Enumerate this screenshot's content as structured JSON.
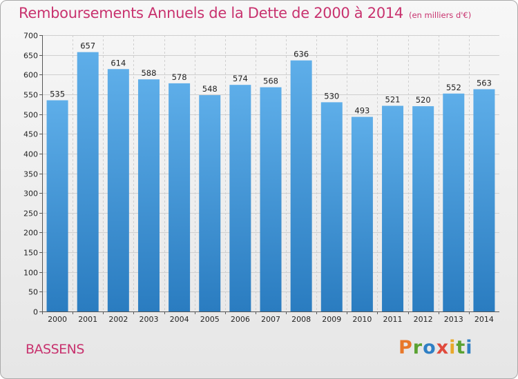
{
  "page": {
    "title": "Remboursements Annuels de la Dette de 2000 à 2014",
    "subtitle": "(en milliers d'€)",
    "city": "BASSENS",
    "logo_text": "Proxiti",
    "colors": {
      "title": "#c8326e",
      "bar_top": "#5eaee9",
      "bar_bottom": "#2a7cc0",
      "grid": "#cfcfcf",
      "logo_letters": [
        "#e8782a",
        "#5aa232",
        "#2f7fc4",
        "#e04a3c",
        "#e8a82a",
        "#5aa232",
        "#2f7fc4"
      ]
    }
  },
  "chart_data": {
    "type": "bar",
    "title": "Remboursements Annuels de la Dette de 2000 à 2014",
    "subtitle": "(en milliers d'€)",
    "xlabel": "",
    "ylabel": "",
    "categories": [
      "2000",
      "2001",
      "2002",
      "2003",
      "2004",
      "2005",
      "2006",
      "2007",
      "2008",
      "2009",
      "2010",
      "2011",
      "2012",
      "2013",
      "2014"
    ],
    "values": [
      535,
      657,
      614,
      588,
      578,
      548,
      574,
      568,
      636,
      530,
      493,
      521,
      520,
      552,
      563
    ],
    "value_labels": [
      "535",
      "657",
      "614",
      "588",
      "578",
      "548",
      "574",
      "568",
      "636",
      "530",
      "493",
      "521",
      "520",
      "552",
      "563"
    ],
    "ylim": [
      0,
      700
    ],
    "yticks": [
      0,
      50,
      100,
      150,
      200,
      250,
      300,
      350,
      400,
      450,
      500,
      550,
      600,
      650,
      700
    ],
    "ytick_labels": [
      "0",
      "50",
      "100",
      "150",
      "200",
      "250",
      "300",
      "350",
      "400",
      "450",
      "500",
      "550",
      "600",
      "650",
      "700"
    ],
    "grid": true,
    "legend": "none"
  }
}
